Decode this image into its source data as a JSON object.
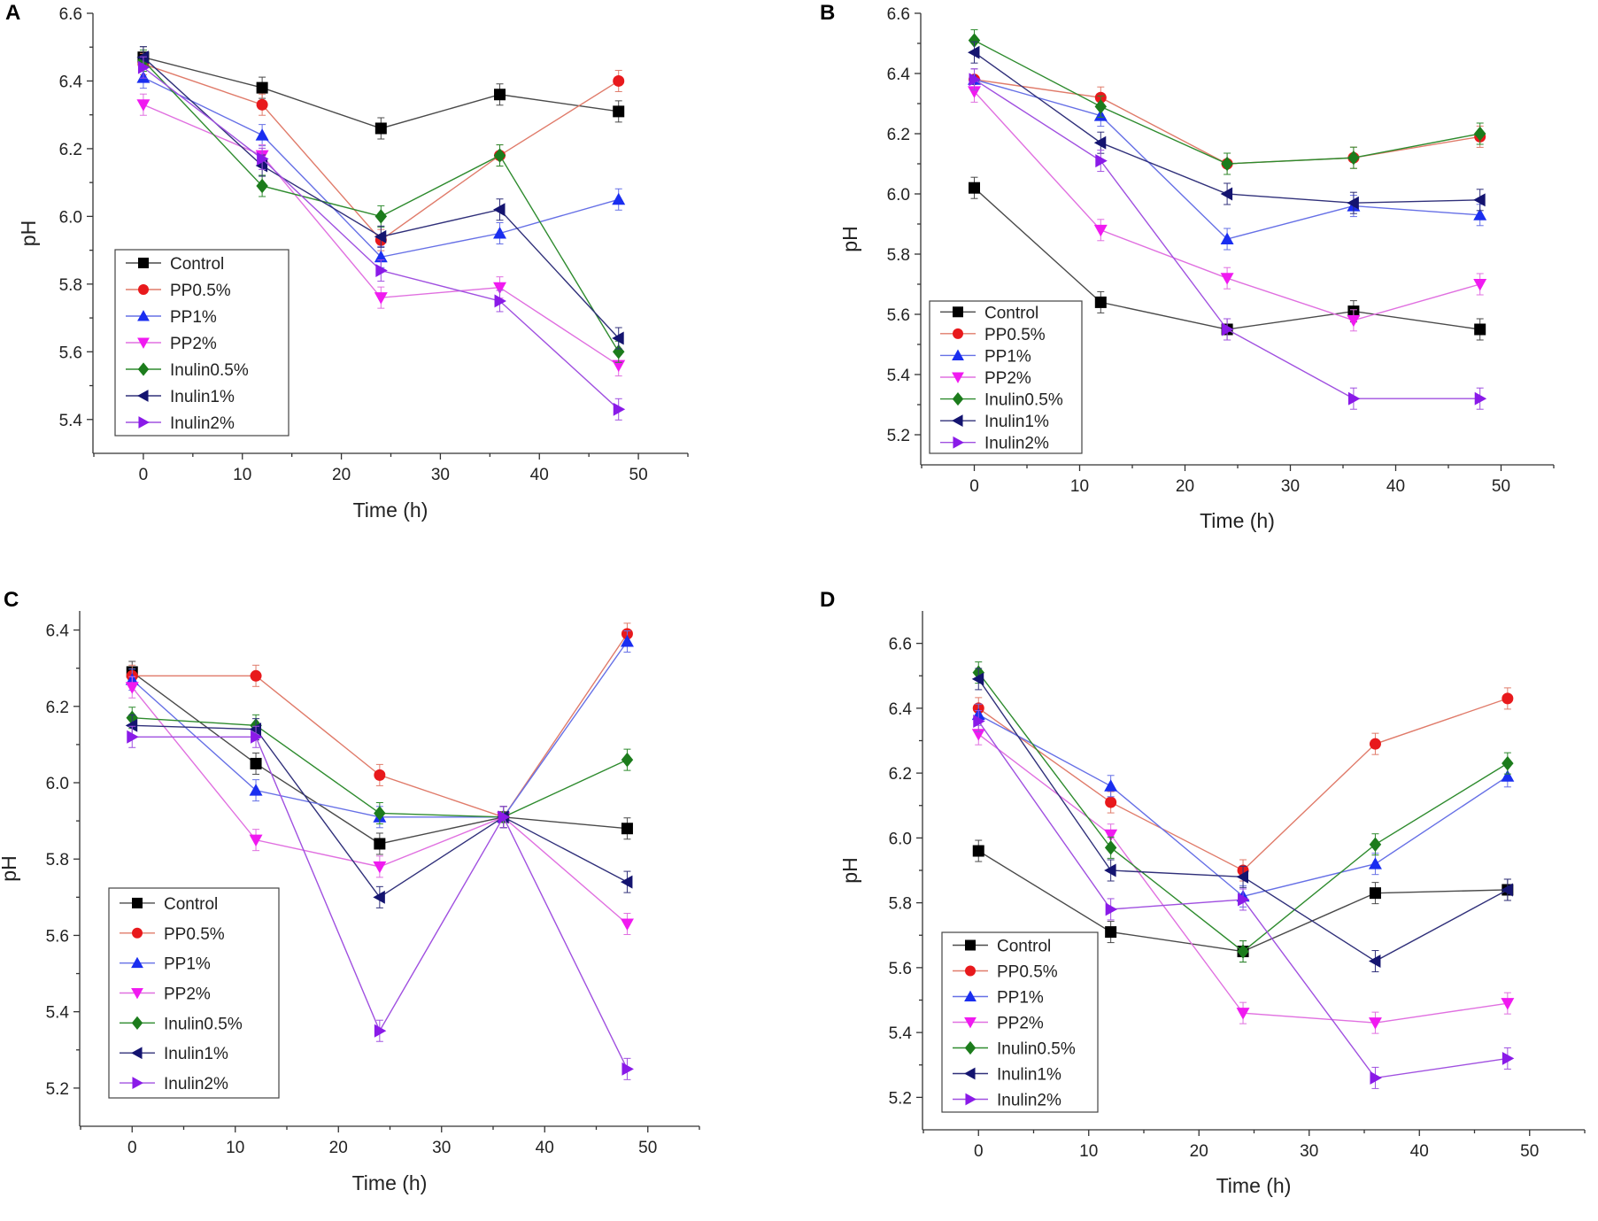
{
  "series_styles": [
    {
      "name": "Control",
      "line": "#4a4a4a",
      "fill": "#000000",
      "marker": "square"
    },
    {
      "name": "PP0.5%",
      "line": "#e07b6a",
      "fill": "#e8191c",
      "marker": "circle"
    },
    {
      "name": "PP1%",
      "line": "#6670e6",
      "fill": "#1a2ef0",
      "marker": "triangle-up"
    },
    {
      "name": "PP2%",
      "line": "#e070e0",
      "fill": "#f01af0",
      "marker": "triangle-down"
    },
    {
      "name": "Inulin0.5%",
      "line": "#2e8b2e",
      "fill": "#1c7c1c",
      "marker": "diamond"
    },
    {
      "name": "Inulin1%",
      "line": "#30307a",
      "fill": "#141470",
      "marker": "triangle-left"
    },
    {
      "name": "Inulin2%",
      "line": "#a050e0",
      "fill": "#8a1ae8",
      "marker": "triangle-right"
    }
  ],
  "chart_data": [
    {
      "panel": "A",
      "type": "line",
      "xlabel": "Time (h)",
      "ylabel": "pH",
      "xlim": [
        -5,
        55
      ],
      "ylim": [
        5.3,
        6.6
      ],
      "xticks": [
        0,
        10,
        20,
        30,
        40,
        50
      ],
      "yticks": [
        5.4,
        5.6,
        5.8,
        6.0,
        6.2,
        6.4,
        6.6
      ],
      "x": [
        0,
        12,
        24,
        36,
        48
      ],
      "series": [
        {
          "name": "Control",
          "values": [
            6.47,
            6.38,
            6.26,
            6.36,
            6.31
          ]
        },
        {
          "name": "PP0.5%",
          "values": [
            6.45,
            6.33,
            5.93,
            6.18,
            6.4
          ]
        },
        {
          "name": "PP1%",
          "values": [
            6.41,
            6.24,
            5.88,
            5.95,
            6.05
          ]
        },
        {
          "name": "PP2%",
          "values": [
            6.33,
            6.18,
            5.76,
            5.79,
            5.56
          ]
        },
        {
          "name": "Inulin0.5%",
          "values": [
            6.46,
            6.09,
            6.0,
            6.18,
            5.6
          ]
        },
        {
          "name": "Inulin1%",
          "values": [
            6.47,
            6.15,
            5.94,
            6.02,
            5.64
          ]
        },
        {
          "name": "Inulin2%",
          "values": [
            6.44,
            6.17,
            5.84,
            5.75,
            5.43
          ]
        }
      ]
    },
    {
      "panel": "B",
      "type": "line",
      "xlabel": "Time (h)",
      "ylabel": "pH",
      "xlim": [
        -5,
        55
      ],
      "ylim": [
        5.1,
        6.6
      ],
      "xticks": [
        0,
        10,
        20,
        30,
        40,
        50
      ],
      "yticks": [
        5.2,
        5.4,
        5.6,
        5.8,
        6.0,
        6.2,
        6.4,
        6.6
      ],
      "x": [
        0,
        12,
        24,
        36,
        48
      ],
      "series": [
        {
          "name": "Control",
          "values": [
            6.02,
            5.64,
            5.55,
            5.61,
            5.55
          ]
        },
        {
          "name": "PP0.5%",
          "values": [
            6.38,
            6.32,
            6.1,
            6.12,
            6.19
          ]
        },
        {
          "name": "PP1%",
          "values": [
            6.38,
            6.26,
            5.85,
            5.96,
            5.93
          ]
        },
        {
          "name": "PP2%",
          "values": [
            6.34,
            5.88,
            5.72,
            5.58,
            5.7
          ]
        },
        {
          "name": "Inulin0.5%",
          "values": [
            6.51,
            6.29,
            6.1,
            6.12,
            6.2
          ]
        },
        {
          "name": "Inulin1%",
          "values": [
            6.47,
            6.17,
            6.0,
            5.97,
            5.98
          ]
        },
        {
          "name": "Inulin2%",
          "values": [
            6.38,
            6.11,
            5.55,
            5.32,
            5.32
          ]
        }
      ]
    },
    {
      "panel": "C",
      "type": "line",
      "xlabel": "Time (h)",
      "ylabel": "pH",
      "xlim": [
        -5,
        55
      ],
      "ylim": [
        5.1,
        6.45
      ],
      "xticks": [
        0,
        10,
        20,
        30,
        40,
        50
      ],
      "yticks": [
        5.2,
        5.4,
        5.6,
        5.8,
        6.0,
        6.2,
        6.4
      ],
      "x": [
        0,
        12,
        24,
        36,
        48
      ],
      "series": [
        {
          "name": "Control",
          "values": [
            6.29,
            6.05,
            5.84,
            5.91,
            5.88
          ]
        },
        {
          "name": "PP0.5%",
          "values": [
            6.28,
            6.28,
            6.02,
            5.91,
            6.39
          ]
        },
        {
          "name": "PP1%",
          "values": [
            6.27,
            5.98,
            5.91,
            5.91,
            6.37
          ]
        },
        {
          "name": "PP2%",
          "values": [
            6.25,
            5.85,
            5.78,
            5.91,
            5.63
          ]
        },
        {
          "name": "Inulin0.5%",
          "values": [
            6.17,
            6.15,
            5.92,
            5.91,
            6.06
          ]
        },
        {
          "name": "Inulin1%",
          "values": [
            6.15,
            6.14,
            5.7,
            5.91,
            5.74
          ]
        },
        {
          "name": "Inulin2%",
          "values": [
            6.12,
            6.12,
            5.35,
            5.91,
            5.25
          ]
        }
      ]
    },
    {
      "panel": "D",
      "type": "line",
      "xlabel": "Time (h)",
      "ylabel": "pH",
      "xlim": [
        -5,
        55
      ],
      "ylim": [
        5.1,
        6.7
      ],
      "xticks": [
        0,
        10,
        20,
        30,
        40,
        50
      ],
      "yticks": [
        5.2,
        5.4,
        5.6,
        5.8,
        6.0,
        6.2,
        6.4,
        6.6
      ],
      "x": [
        0,
        12,
        24,
        36,
        48
      ],
      "series": [
        {
          "name": "Control",
          "values": [
            5.96,
            5.71,
            5.65,
            5.83,
            5.84
          ]
        },
        {
          "name": "PP0.5%",
          "values": [
            6.4,
            6.11,
            5.9,
            6.29,
            6.43
          ]
        },
        {
          "name": "PP1%",
          "values": [
            6.38,
            6.16,
            5.82,
            5.92,
            6.19
          ]
        },
        {
          "name": "PP2%",
          "values": [
            6.32,
            6.01,
            5.46,
            5.43,
            5.49
          ]
        },
        {
          "name": "Inulin0.5%",
          "values": [
            6.51,
            5.97,
            5.65,
            5.98,
            6.23
          ]
        },
        {
          "name": "Inulin1%",
          "values": [
            6.49,
            5.9,
            5.88,
            5.62,
            5.84
          ]
        },
        {
          "name": "Inulin2%",
          "values": [
            6.36,
            5.78,
            5.81,
            5.26,
            5.32
          ]
        }
      ]
    }
  ]
}
